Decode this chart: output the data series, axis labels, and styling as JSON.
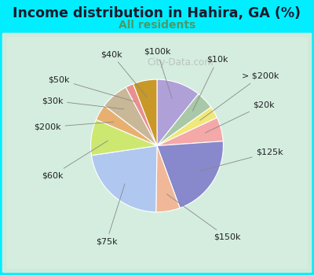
{
  "title": "Income distribution in Hahira, GA (%)",
  "subtitle": "All residents",
  "title_color": "#1a1a2e",
  "subtitle_color": "#4a9a6a",
  "background_outer": "#00eeff",
  "background_inner_start": "#d0ede0",
  "background_inner_end": "#e8f8f0",
  "labels": [
    "$100k",
    "$10k",
    "> $200k",
    "$20k",
    "$125k",
    "$150k",
    "$75k",
    "$60k",
    "$200k",
    "$30k",
    "$50k",
    "$40k"
  ],
  "values": [
    11,
    4.5,
    3,
    6,
    21,
    6,
    23,
    9,
    4,
    7,
    2,
    6
  ],
  "colors": [
    "#b0a0d8",
    "#a8c8a8",
    "#f0e878",
    "#f4a8a8",
    "#8888cc",
    "#f0b898",
    "#b0c8f0",
    "#cce870",
    "#e8b070",
    "#c8b898",
    "#e89090",
    "#c89828"
  ],
  "label_fontsize": 8,
  "watermark": "City-Data.com"
}
